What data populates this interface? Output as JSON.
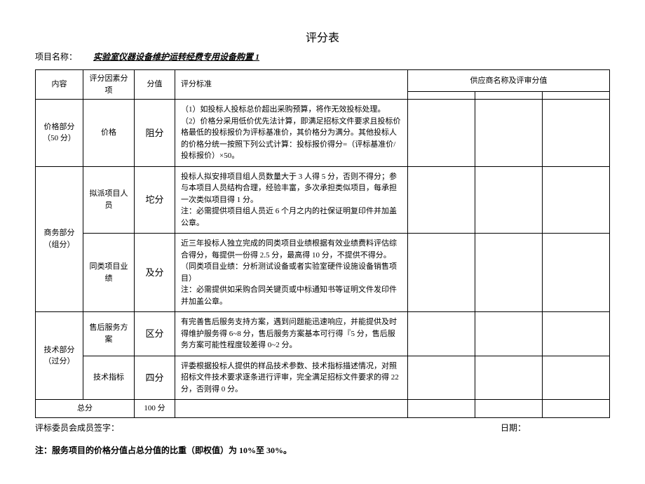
{
  "title": "评分表",
  "project_label": "项目名称：",
  "project_name": "实验室仪器设备维护运转经费专用设备购置 1",
  "headers": {
    "content": "内容",
    "factor": "评分因素分项",
    "score": "分值",
    "criteria": "评分标准",
    "supplier": "供应商名称及评审分值"
  },
  "rows": [
    {
      "content": "价格部分（50 分）",
      "factor": "价格",
      "score": "阻分",
      "criteria": "（1）如投标人投标总价超出采购预算，将作无效投标处理。\n（2）价格分采用低价优先法计算，即满足招标文件要求且投标价格最低的投标报价为评标基准价，其价格分为满分。其他投标人的价格分统一按照下列公式计算：投标报价得分=（评标基准价/投标报价）×50。"
    },
    {
      "content": "商务部分（组分）",
      "group_rowspan": 2,
      "factor": "拟派项目人员",
      "score": "坨分",
      "criteria": "投标人拟安排项目组人员数量大于 3 人得 5 分，否则不得分；参与本项目人员结构合理，经验丰富，多次承担类似项目，每承担一次类似项目得 1 分。\n注：必需提供项目组人员近 6 个月之内的社保证明复印件并加盖公章。"
    },
    {
      "factor": "同类项目业绩",
      "score": "及分",
      "criteria": "近三年投标人独立完成的同类项目业绩根据有效业绩费料评估综合得分，每提供一份得 2.5 分，最高得 10 分，不提供不得分。\n（同类项目业绩：分析测试设备或者实验室硬件设施设备销售项目）\n注：必需提供如采购合同关键页或中标通知书等证明文件发印件并加盖公章。"
    },
    {
      "content": "技术部分（过分）",
      "group_rowspan": 2,
      "factor": "售后服务方案",
      "score": "区分",
      "criteria": "有完善售后服务支持方案，遇到问题能迅速响应，并能提供及时得维护服务得 6~8 分，售后服务方案基本可行得『5 分，售后服务方案可能性程度较差得 0~2 分。"
    },
    {
      "factor": "技术指标",
      "score": "四分",
      "criteria": "评委根据投标人提供的样品技术参数、技术指标描述情况，对照招标文件技术要求逐条进行评审，完全满足招标文件要求的得 22 分，否则得 0 分。"
    }
  ],
  "total_label": "总分",
  "total_score": "100 分",
  "signature_label": "评标委员会成员签字：",
  "date_label": "日期：",
  "footnote": "注：服务项目的价格分值占总分值的比重（即权值）为 10%至 30%。"
}
